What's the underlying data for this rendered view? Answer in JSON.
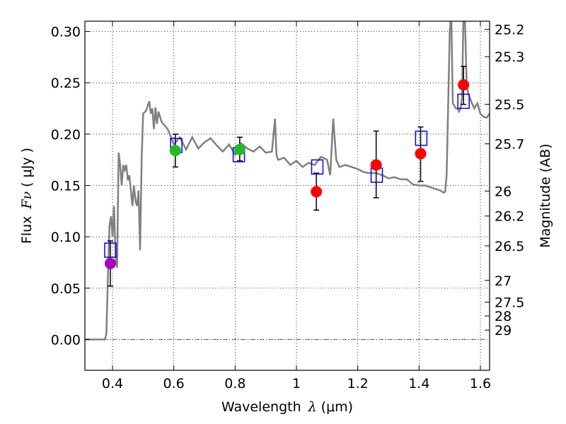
{
  "chart_data": {
    "type": "scatter",
    "xlabel_text": "Wavelength",
    "xlabel_symbol": "λ",
    "xlabel_unit": "(μm)",
    "ylabel_text": "Flux",
    "ylabel_symbol": "Fν",
    "ylabel_unit": "( μJy )",
    "y2label": "Magnitude (AB)",
    "xlim": [
      0.31,
      1.63
    ],
    "ylim": [
      -0.03,
      0.31
    ],
    "x_ticks": [
      {
        "value": 0.4,
        "label": "0.4"
      },
      {
        "value": 0.6,
        "label": "0.6"
      },
      {
        "value": 0.8,
        "label": "0.8"
      },
      {
        "value": 1.0,
        "label": "1"
      },
      {
        "value": 1.2,
        "label": "1.2"
      },
      {
        "value": 1.4,
        "label": "1.4"
      },
      {
        "value": 1.6,
        "label": "1.6"
      }
    ],
    "y_ticks": [
      {
        "value": 0.0,
        "label": "0.00"
      },
      {
        "value": 0.05,
        "label": "0.05"
      },
      {
        "value": 0.1,
        "label": "0.10"
      },
      {
        "value": 0.15,
        "label": "0.15"
      },
      {
        "value": 0.2,
        "label": "0.20"
      },
      {
        "value": 0.25,
        "label": "0.25"
      },
      {
        "value": 0.3,
        "label": "0.30"
      }
    ],
    "mag_ticks": [
      {
        "mag": 25.2,
        "label": "25.2"
      },
      {
        "mag": 25.3,
        "label": "25.3"
      },
      {
        "mag": 25.5,
        "label": "25.5"
      },
      {
        "mag": 25.7,
        "label": "25.7"
      },
      {
        "mag": 26,
        "label": "26"
      },
      {
        "mag": 26.2,
        "label": "26.2"
      },
      {
        "mag": 26.5,
        "label": "26.5"
      },
      {
        "mag": 27,
        "label": "27"
      },
      {
        "mag": 27.5,
        "label": "27.5"
      },
      {
        "mag": 28,
        "label": "28"
      },
      {
        "mag": 29,
        "label": "29"
      }
    ],
    "grid": true,
    "colors": {
      "model": "#808080",
      "observed_blue": "#00bfff",
      "observed_green": "#22bb22",
      "observed_red": "#ff0000",
      "observed_violet": "#aa00bb",
      "model_box": "#0000ff",
      "errorbar": "#000000"
    },
    "observed_points": [
      {
        "x": 0.393,
        "y": 0.074,
        "yerr_low": 0.052,
        "yerr_high": 0.096,
        "color": "violet"
      },
      {
        "x": 0.605,
        "y": 0.184,
        "yerr_low": 0.168,
        "yerr_high": 0.2,
        "color": "green"
      },
      {
        "x": 0.815,
        "y": 0.185,
        "yerr_low": 0.174,
        "yerr_high": 0.197,
        "color": "green"
      },
      {
        "x": 1.065,
        "y": 0.144,
        "yerr_low": 0.126,
        "yerr_high": 0.162,
        "color": "red"
      },
      {
        "x": 1.26,
        "y": 0.17,
        "yerr_low": 0.138,
        "yerr_high": 0.203,
        "color": "red"
      },
      {
        "x": 1.405,
        "y": 0.181,
        "yerr_low": 0.154,
        "yerr_high": 0.207,
        "color": "red"
      },
      {
        "x": 1.545,
        "y": 0.248,
        "yerr_low": 0.229,
        "yerr_high": 0.266,
        "color": "red"
      }
    ],
    "model_photometry": [
      {
        "x": 0.393,
        "y": 0.087
      },
      {
        "x": 0.608,
        "y": 0.189
      },
      {
        "x": 0.812,
        "y": 0.18
      },
      {
        "x": 1.068,
        "y": 0.168
      },
      {
        "x": 1.262,
        "y": 0.16
      },
      {
        "x": 1.407,
        "y": 0.196
      },
      {
        "x": 1.545,
        "y": 0.232
      }
    ],
    "model_spectrum": {
      "x": [
        0.31,
        0.36,
        0.375,
        0.38,
        0.385,
        0.39,
        0.395,
        0.4,
        0.405,
        0.41,
        0.415,
        0.42,
        0.425,
        0.43,
        0.435,
        0.44,
        0.445,
        0.45,
        0.455,
        0.46,
        0.465,
        0.47,
        0.475,
        0.48,
        0.485,
        0.49,
        0.495,
        0.5,
        0.51,
        0.52,
        0.525,
        0.53,
        0.535,
        0.54,
        0.545,
        0.55,
        0.56,
        0.58,
        0.6,
        0.62,
        0.64,
        0.66,
        0.68,
        0.7,
        0.72,
        0.74,
        0.76,
        0.78,
        0.8,
        0.82,
        0.84,
        0.86,
        0.88,
        0.9,
        0.92,
        0.93,
        0.935,
        0.94,
        0.96,
        0.98,
        1.0,
        1.02,
        1.04,
        1.06,
        1.08,
        1.1,
        1.11,
        1.12,
        1.13,
        1.14,
        1.16,
        1.18,
        1.2,
        1.22,
        1.24,
        1.26,
        1.28,
        1.3,
        1.32,
        1.34,
        1.36,
        1.38,
        1.4,
        1.42,
        1.44,
        1.46,
        1.47,
        1.48,
        1.485,
        1.49,
        1.5,
        1.505,
        1.51,
        1.52,
        1.525,
        1.53,
        1.535,
        1.54,
        1.545,
        1.55,
        1.555,
        1.56,
        1.57,
        1.58,
        1.59,
        1.6,
        1.61,
        1.62,
        1.63
      ],
      "y": [
        0.0,
        0.0,
        0.0,
        0.005,
        0.06,
        0.11,
        0.12,
        0.1,
        0.13,
        0.08,
        0.07,
        0.182,
        0.17,
        0.15,
        0.17,
        0.165,
        0.17,
        0.155,
        0.16,
        0.145,
        0.13,
        0.15,
        0.135,
        0.13,
        0.145,
        0.087,
        0.175,
        0.22,
        0.223,
        0.232,
        0.22,
        0.225,
        0.205,
        0.226,
        0.21,
        0.222,
        0.212,
        0.205,
        0.19,
        0.197,
        0.185,
        0.197,
        0.186,
        0.192,
        0.196,
        0.189,
        0.183,
        0.19,
        0.18,
        0.191,
        0.186,
        0.183,
        0.188,
        0.182,
        0.183,
        0.215,
        0.18,
        0.175,
        0.177,
        0.17,
        0.174,
        0.168,
        0.172,
        0.17,
        0.178,
        0.175,
        0.16,
        0.215,
        0.175,
        0.168,
        0.17,
        0.168,
        0.166,
        0.163,
        0.162,
        0.162,
        0.16,
        0.157,
        0.158,
        0.156,
        0.156,
        0.151,
        0.15,
        0.15,
        0.148,
        0.146,
        0.145,
        0.143,
        0.144,
        0.16,
        0.3,
        0.32,
        0.23,
        0.225,
        0.225,
        0.222,
        0.225,
        0.235,
        0.32,
        0.31,
        0.25,
        0.24,
        0.232,
        0.225,
        0.23,
        0.22,
        0.217,
        0.216,
        0.22
      ]
    }
  }
}
